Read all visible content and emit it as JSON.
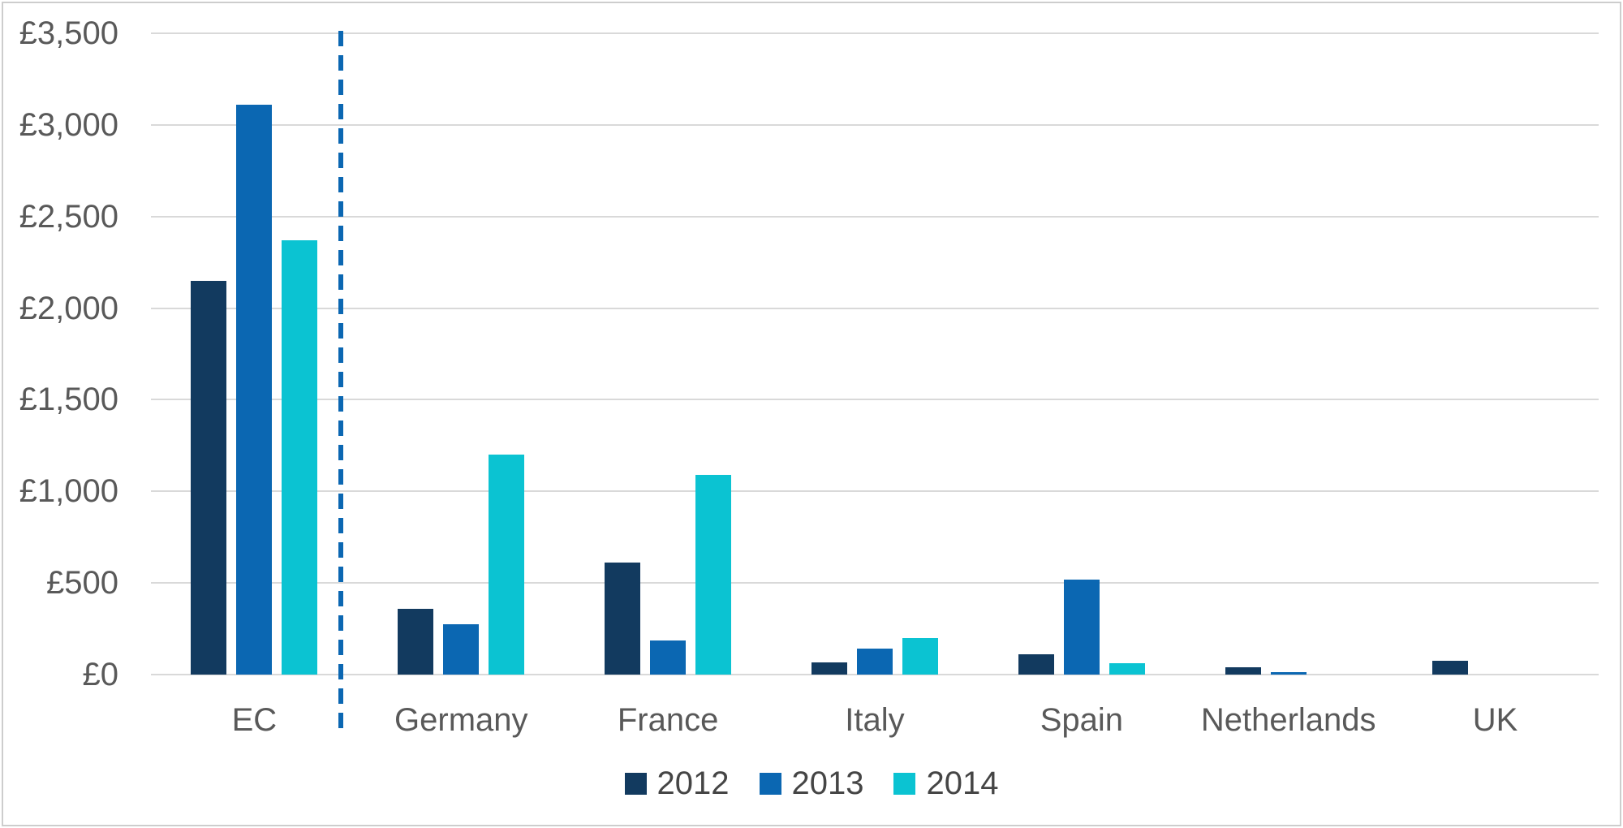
{
  "chart_data": {
    "type": "bar",
    "title": "",
    "categories": [
      "EC",
      "Germany",
      "France",
      "Italy",
      "Spain",
      "Netherlands",
      "UK"
    ],
    "series": [
      {
        "name": "2012",
        "color": "#123A5F",
        "values": [
          2150,
          360,
          610,
          65,
          110,
          40,
          75
        ]
      },
      {
        "name": "2013",
        "color": "#0B67B2",
        "values": [
          3110,
          275,
          185,
          140,
          520,
          15,
          0
        ]
      },
      {
        "name": "2014",
        "color": "#0BC3D2",
        "values": [
          2370,
          1200,
          1090,
          200,
          60,
          0,
          0
        ]
      }
    ],
    "y_axis": {
      "min": 0,
      "max": 3500,
      "step": 500,
      "currency": "£",
      "ticks": [
        {
          "value": 0,
          "label": "£0"
        },
        {
          "value": 500,
          "label": "£500"
        },
        {
          "value": 1000,
          "label": "£1,000"
        },
        {
          "value": 1500,
          "label": "£1,500"
        },
        {
          "value": 2000,
          "label": "£2,000"
        },
        {
          "value": 2500,
          "label": "£2,500"
        },
        {
          "value": 3000,
          "label": "£3,000"
        },
        {
          "value": 3500,
          "label": "£3,500"
        }
      ]
    },
    "xlabel": "",
    "ylabel": "",
    "grid": true,
    "legend": {
      "position": "bottom",
      "entries": [
        "2012",
        "2013",
        "2014"
      ]
    },
    "separator": {
      "after_category": "EC",
      "style": "dashed",
      "color": "#0B67B2"
    }
  },
  "colors": {
    "background": "#FFFFFF",
    "frame_border": "#CDCDCD",
    "gridline": "#D9D9D9",
    "axis_text": "#595959",
    "legend_text": "#454545"
  }
}
